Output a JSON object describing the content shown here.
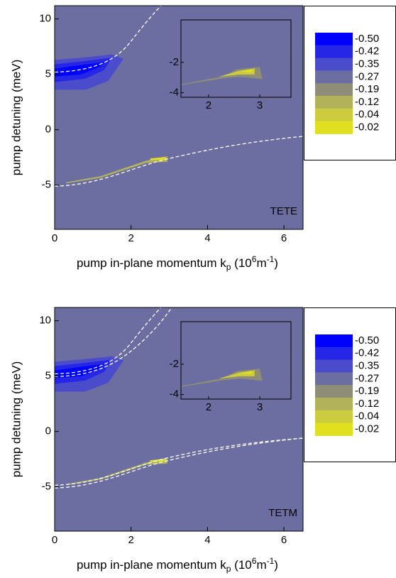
{
  "chart_data": [
    {
      "type": "contour",
      "label": "TETE",
      "xlabel": [
        "pump in-plane momentum k",
        "p",
        " (10",
        "6",
        "m",
        "-1",
        ")"
      ],
      "ylabel": "pump detuning (meV)",
      "xlim": [
        0,
        6.5
      ],
      "ylim": [
        -9,
        11.2
      ],
      "xticks": [
        0,
        2,
        4,
        6
      ],
      "yticks": [
        -5,
        0,
        5,
        10
      ],
      "levels": [
        {
          "value": -0.5,
          "label": "-0.50"
        },
        -0.42,
        -0.35,
        -0.27,
        -0.19,
        -0.12,
        -0.04,
        -0.02
      ],
      "colors": [
        "#0000ff",
        "#2626e6",
        "#4a4ccc",
        "#6c6ea2",
        "#8e8e78",
        "#b2b25a",
        "#cccc3e",
        "#e0e020"
      ],
      "inset": {
        "xlim": [
          1.46,
          3.61
        ],
        "ylim": [
          -4.3,
          0.8
        ],
        "xticks": [
          2,
          3
        ],
        "yticks": [
          -2,
          -4
        ]
      }
    },
    {
      "type": "contour",
      "label": "TETM",
      "xlabel": [
        "pump in-plane momentum k",
        "p",
        " (10",
        "6",
        "m",
        "-1",
        ")"
      ],
      "ylabel": "pump detuning (meV)",
      "xlim": [
        0,
        6.5
      ],
      "ylim": [
        -9,
        11.2
      ],
      "xticks": [
        0,
        2,
        4,
        6
      ],
      "yticks": [
        -5,
        0,
        5,
        10
      ],
      "levels": [
        {
          "value": -0.5,
          "label": "-0.50"
        },
        -0.42,
        -0.35,
        -0.27,
        -0.19,
        -0.12,
        -0.04,
        -0.02
      ],
      "colors": [
        "#0000ff",
        "#2626e6",
        "#4a4ccc",
        "#6c6ea2",
        "#8e8e78",
        "#b2b25a",
        "#cccc3e",
        "#e0e020"
      ],
      "inset": {
        "xlim": [
          1.46,
          3.61
        ],
        "ylim": [
          -4.3,
          0.8
        ],
        "xticks": [
          2,
          3
        ],
        "yticks": [
          -2,
          -4
        ]
      }
    }
  ]
}
